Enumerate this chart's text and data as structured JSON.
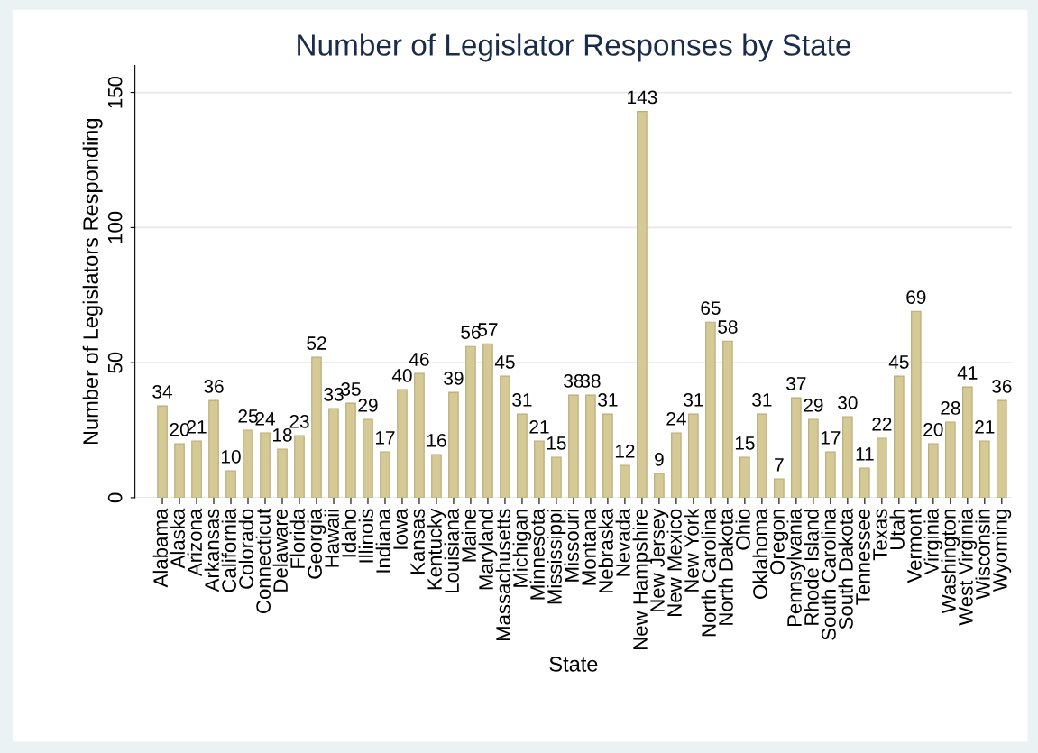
{
  "chart_data": {
    "type": "bar",
    "title": "Number of Legislator Responses by State",
    "xlabel": "State",
    "ylabel": "Number of Legislators Responding",
    "categories": [
      "Alabama",
      "Alaska",
      "Arizona",
      "Arkansas",
      "California",
      "Colorado",
      "Connecticut",
      "Delaware",
      "Florida",
      "Georgia",
      "Hawaii",
      "Idaho",
      "Illinois",
      "Indiana",
      "Iowa",
      "Kansas",
      "Kentucky",
      "Louisiana",
      "Maine",
      "Maryland",
      "Massachusetts",
      "Michigan",
      "Minnesota",
      "Mississippi",
      "Missouri",
      "Montana",
      "Nebraska",
      "Nevada",
      "New Hampshire",
      "New Jersey",
      "New Mexico",
      "New York",
      "North Carolina",
      "North Dakota",
      "Ohio",
      "Oklahoma",
      "Oregon",
      "Pennsylvania",
      "Rhode Island",
      "South Carolina",
      "South Dakota",
      "Tennessee",
      "Texas",
      "Utah",
      "Vermont",
      "Virginia",
      "Washington",
      "West Virginia",
      "Wisconsin",
      "Wyoming"
    ],
    "values": [
      34,
      20,
      21,
      36,
      10,
      25,
      24,
      18,
      23,
      52,
      33,
      35,
      29,
      17,
      40,
      46,
      16,
      39,
      56,
      57,
      45,
      31,
      21,
      15,
      38,
      38,
      31,
      12,
      143,
      9,
      24,
      31,
      65,
      58,
      15,
      31,
      7,
      37,
      29,
      17,
      30,
      11,
      22,
      45,
      69,
      20,
      28,
      41,
      21,
      36
    ],
    "color": "#d5c996",
    "ylim": [
      0,
      160
    ],
    "yticks": [
      0,
      50,
      100,
      150
    ],
    "grid": "y",
    "data_labels": true
  }
}
